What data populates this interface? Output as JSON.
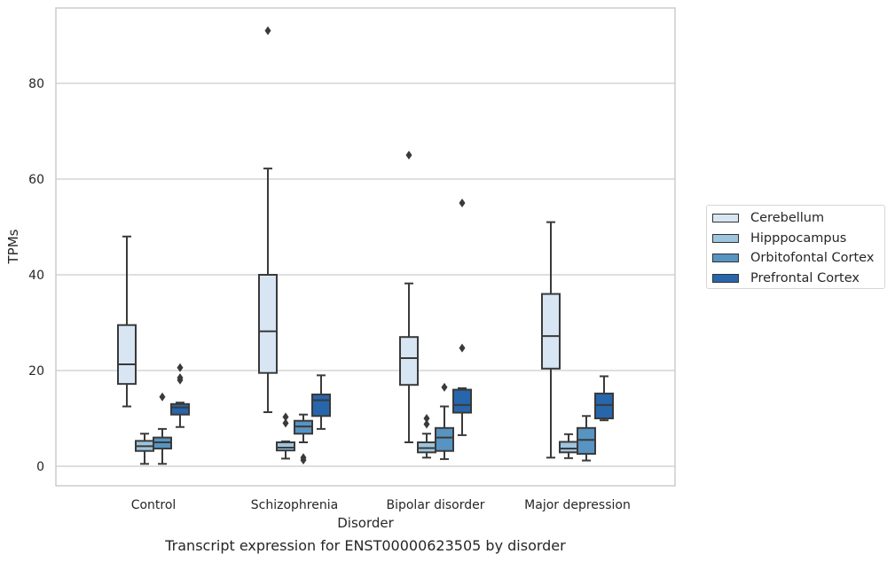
{
  "chart_data": {
    "type": "box",
    "ylabel": "TPMs",
    "xlabel": "Disorder",
    "caption": "Transcript expression for ENST00000623505 by disorder",
    "ylim": [
      -4,
      95
    ],
    "yticks": [
      0,
      20,
      40,
      60,
      80
    ],
    "grid": "horizontal",
    "legend_position": "right",
    "categories": [
      "Control",
      "Schizophrenia",
      "Bipolar disorder",
      "Major depression"
    ],
    "series": [
      {
        "name": "Cerebellum",
        "color": "#d8e5f3",
        "boxes": [
          {
            "whisker_low": 12.5,
            "q1": 17.2,
            "median": 21.3,
            "q3": 29.5,
            "whisker_high": 48.0,
            "outliers": []
          },
          {
            "whisker_low": 11.3,
            "q1": 19.5,
            "median": 28.2,
            "q3": 40.0,
            "whisker_high": 62.2,
            "outliers": [
              91.0
            ]
          },
          {
            "whisker_low": 5.0,
            "q1": 17.0,
            "median": 22.6,
            "q3": 27.0,
            "whisker_high": 38.2,
            "outliers": [
              65.0
            ]
          },
          {
            "whisker_low": 1.8,
            "q1": 20.4,
            "median": 27.2,
            "q3": 36.0,
            "whisker_high": 51.0,
            "outliers": []
          }
        ]
      },
      {
        "name": "Hipppocampus",
        "color": "#9ec4de",
        "boxes": [
          {
            "whisker_low": 0.5,
            "q1": 3.2,
            "median": 4.2,
            "q3": 5.3,
            "whisker_high": 6.8,
            "outliers": []
          },
          {
            "whisker_low": 1.6,
            "q1": 3.3,
            "median": 3.9,
            "q3": 5.0,
            "whisker_high": 5.2,
            "outliers": [
              9.0,
              10.3
            ]
          },
          {
            "whisker_low": 1.8,
            "q1": 2.9,
            "median": 3.8,
            "q3": 5.0,
            "whisker_high": 6.8,
            "outliers": [
              8.8,
              10.0
            ]
          },
          {
            "whisker_low": 1.7,
            "q1": 2.9,
            "median": 3.7,
            "q3": 5.1,
            "whisker_high": 6.7,
            "outliers": []
          }
        ]
      },
      {
        "name": "Orbitofontal Cortex",
        "color": "#5794c2",
        "boxes": [
          {
            "whisker_low": 0.5,
            "q1": 3.7,
            "median": 5.0,
            "q3": 6.0,
            "whisker_high": 7.8,
            "outliers": [
              14.5
            ]
          },
          {
            "whisker_low": 5.0,
            "q1": 6.8,
            "median": 8.3,
            "q3": 9.5,
            "whisker_high": 10.8,
            "outliers": [
              1.3,
              1.8
            ]
          },
          {
            "whisker_low": 1.5,
            "q1": 3.2,
            "median": 6.0,
            "q3": 8.0,
            "whisker_high": 12.5,
            "outliers": [
              16.5
            ]
          },
          {
            "whisker_low": 1.2,
            "q1": 2.6,
            "median": 5.5,
            "q3": 8.0,
            "whisker_high": 10.5,
            "outliers": []
          }
        ]
      },
      {
        "name": "Prefrontal Cortex",
        "color": "#2766ab",
        "boxes": [
          {
            "whisker_low": 8.2,
            "q1": 10.8,
            "median": 12.3,
            "q3": 13.0,
            "whisker_high": 13.3,
            "outliers": [
              18.0,
              18.5,
              20.6
            ]
          },
          {
            "whisker_low": 7.8,
            "q1": 10.5,
            "median": 13.8,
            "q3": 15.0,
            "whisker_high": 19.0,
            "outliers": []
          },
          {
            "whisker_low": 6.5,
            "q1": 11.2,
            "median": 12.8,
            "q3": 16.0,
            "whisker_high": 16.3,
            "outliers": [
              24.7,
              55.0
            ]
          },
          {
            "whisker_low": 9.6,
            "q1": 10.0,
            "median": 12.8,
            "q3": 15.2,
            "whisker_high": 18.8,
            "outliers": []
          }
        ]
      }
    ]
  }
}
